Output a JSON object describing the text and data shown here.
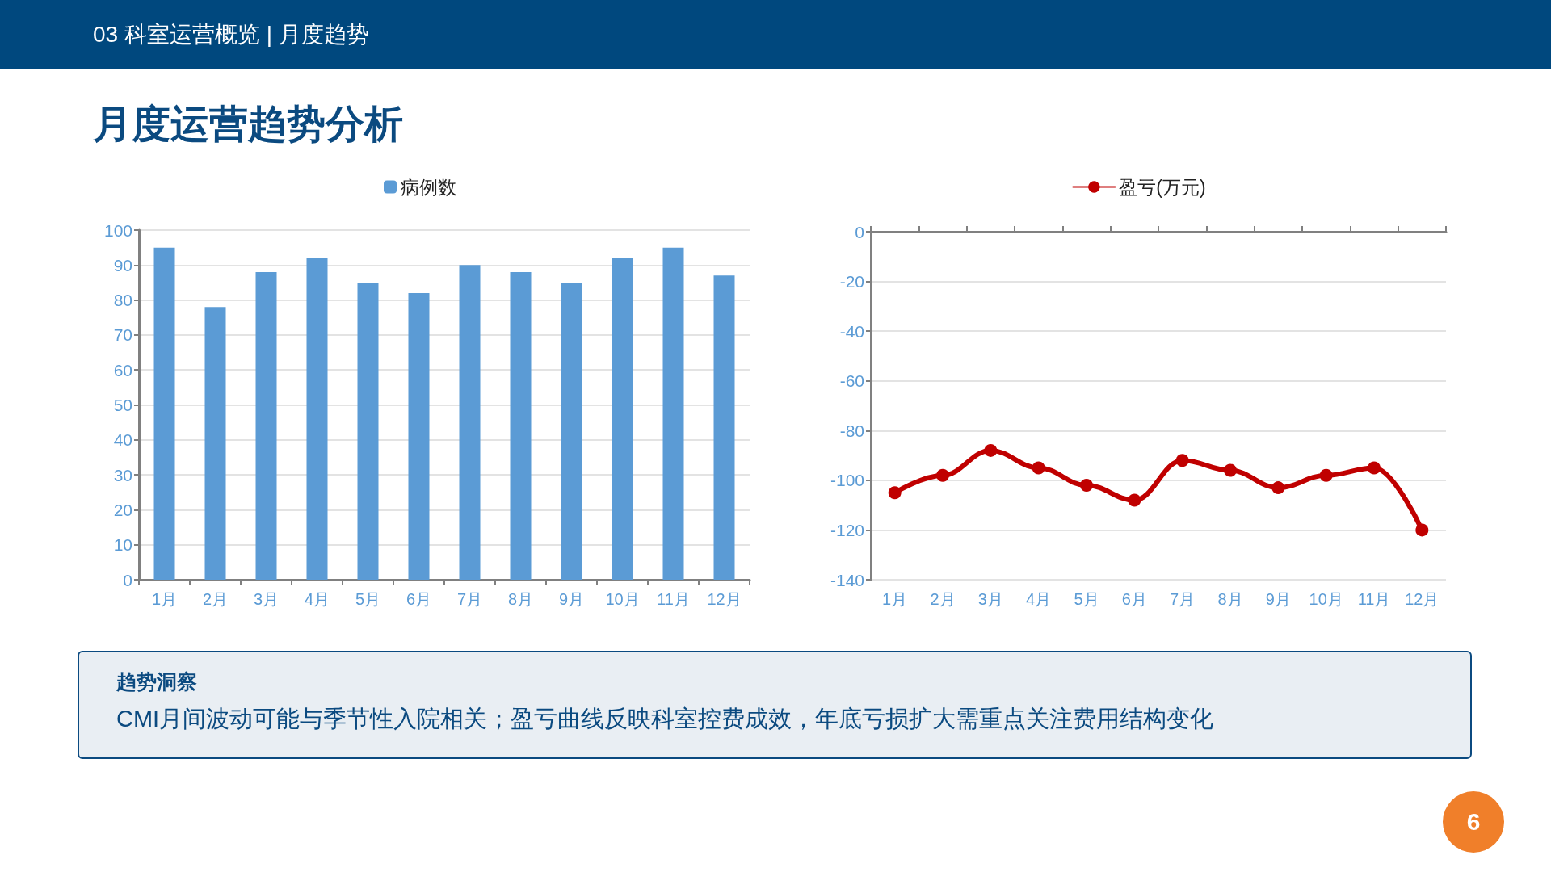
{
  "chart_data": [
    {
      "type": "bar",
      "title": "月度运营趋势分析",
      "subtitle": "03  科室运营概览  |  月度趋势",
      "categories": [
        "1月",
        "2月",
        "3月",
        "4月",
        "5月",
        "6月",
        "7月",
        "8月",
        "9月",
        "10月",
        "11月",
        "12月"
      ],
      "series": [
        {
          "name": "病例数",
          "color": "#5b9bd5",
          "values": [
            95,
            78,
            88,
            92,
            85,
            82,
            90,
            88,
            85,
            92,
            95,
            87
          ]
        }
      ],
      "ylim": [
        0,
        100
      ],
      "yticks": [
        0,
        10,
        20,
        30,
        40,
        50,
        60,
        70,
        80,
        90,
        100
      ],
      "grid": "y",
      "legend": "top"
    },
    {
      "type": "line",
      "categories": [
        "1月",
        "2月",
        "3月",
        "4月",
        "5月",
        "6月",
        "7月",
        "8月",
        "9月",
        "10月",
        "11月",
        "12月"
      ],
      "series": [
        {
          "name": "盈亏(万元)",
          "color": "#c00000",
          "values": [
            -105,
            -98,
            -88,
            -95,
            -102,
            -108,
            -92,
            -96,
            -103,
            -98,
            -95,
            -120
          ]
        }
      ],
      "ylim": [
        -140,
        0
      ],
      "yticks": [
        -140,
        -120,
        -100,
        -80,
        -60,
        -40,
        -20,
        0
      ],
      "grid": "y",
      "legend": "top",
      "marker": "circle",
      "line_style": "solid"
    },
    {
      "type": "other",
      "title": "趋势洞察",
      "annotations": [
        "CMI月间波动可能与季节性入院相关；盈亏曲线反映科室控费成效，年底亏损扩大需重点关注费用结构变化",
        "6"
      ]
    }
  ]
}
